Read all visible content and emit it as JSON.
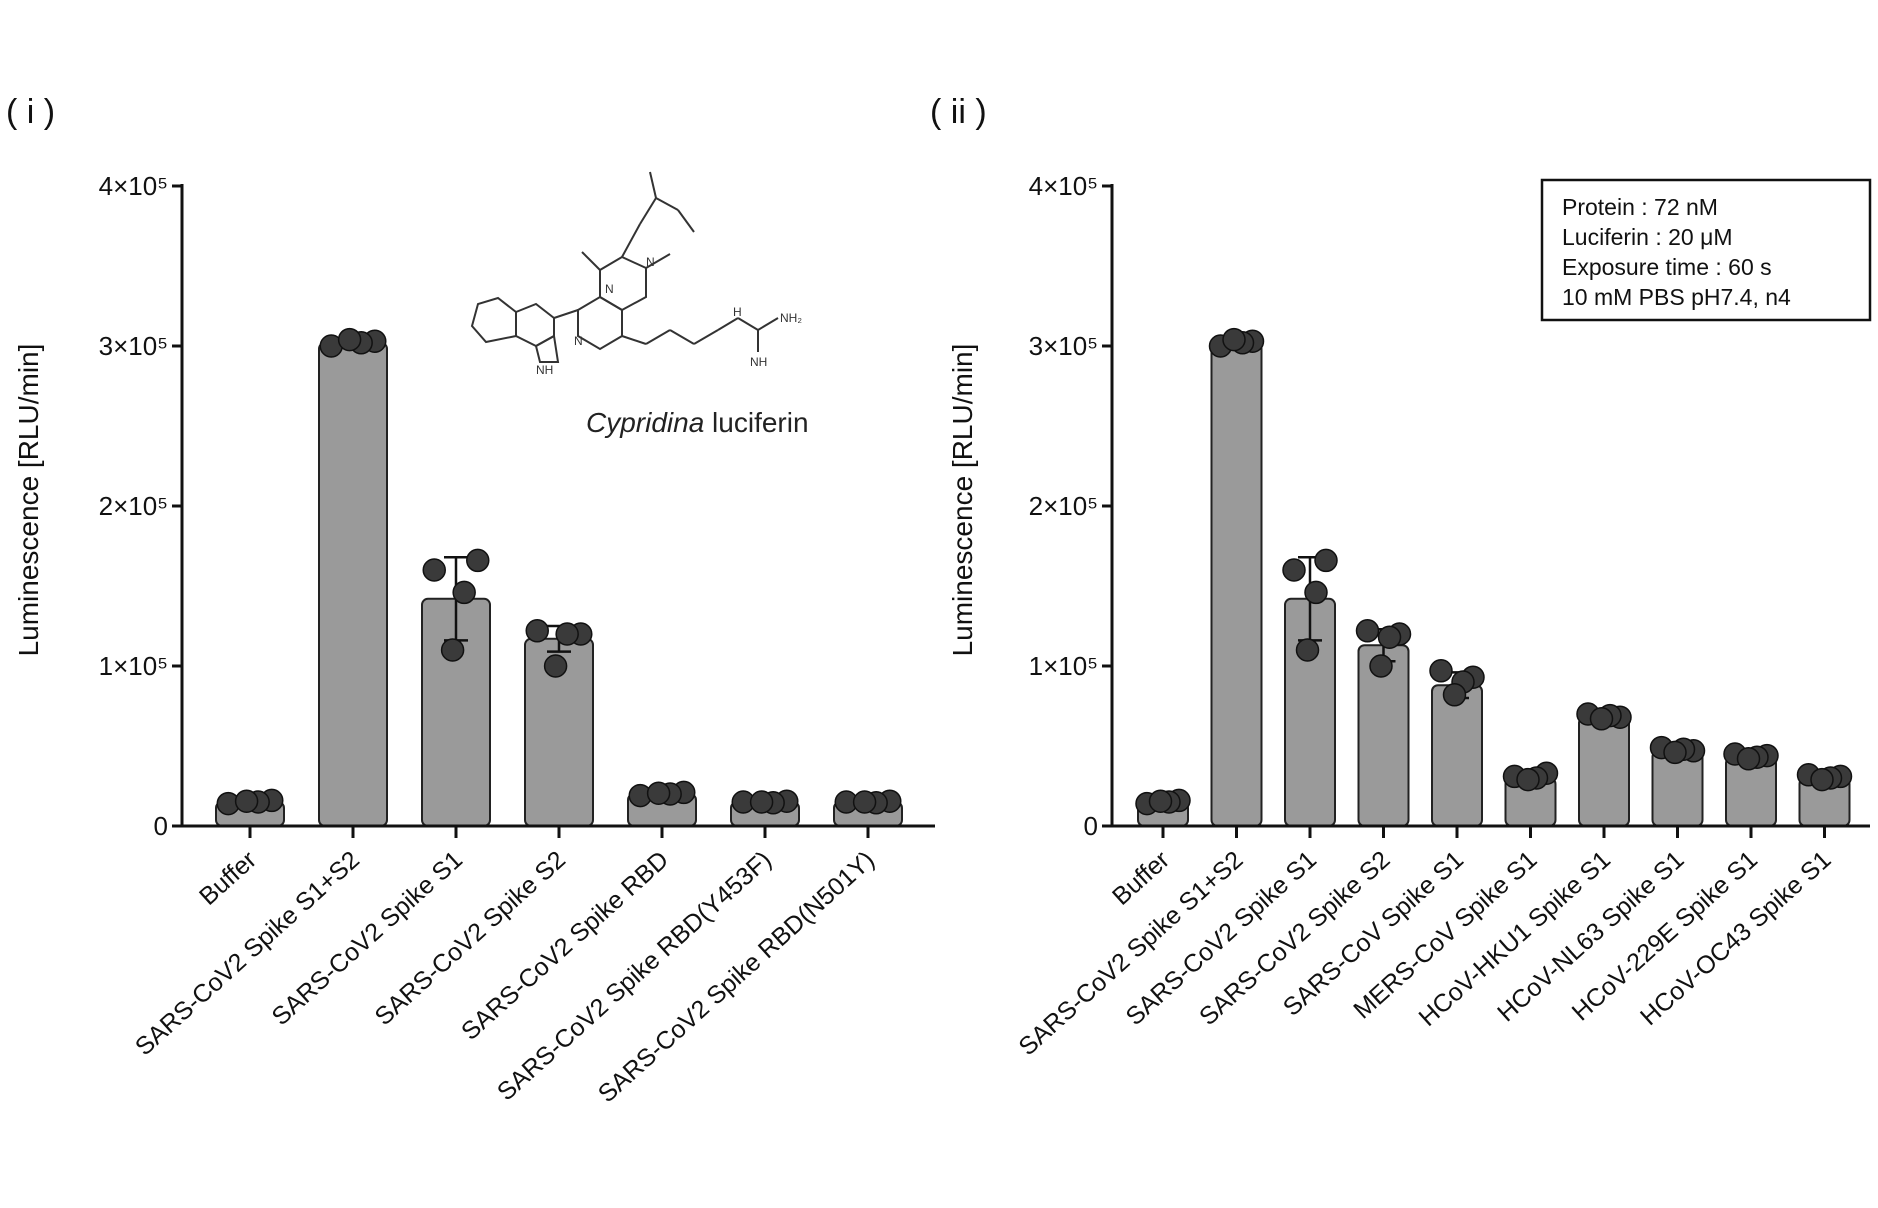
{
  "chart_data": [
    {
      "type": "bar",
      "panel_label": "( i )",
      "ylabel": "Luminescence [RLU/min]",
      "ylim": [
        0,
        400000
      ],
      "yticks": [
        {
          "value": 0,
          "label": "0"
        },
        {
          "value": 100000,
          "label": "1×10⁵"
        },
        {
          "value": 200000,
          "label": "2×10⁵"
        },
        {
          "value": 300000,
          "label": "3×10⁵"
        },
        {
          "value": 400000,
          "label": "4×10⁵"
        }
      ],
      "categories": [
        "Buffer",
        "SARS-CoV2 Spike S1+S2",
        "SARS-CoV2 Spike S1",
        "SARS-CoV2 Spike S2",
        "SARS-CoV2 Spike RBD",
        "SARS-CoV2 Spike RBD(Y453F)",
        "SARS-CoV2 Spike RBD(N501Y)"
      ],
      "values": [
        15000,
        302000,
        142000,
        117000,
        20000,
        15000,
        15000
      ],
      "errors": [
        2000,
        3000,
        26000,
        8000,
        2000,
        1500,
        1500
      ],
      "points": [
        [
          14000,
          16000,
          15000,
          15500
        ],
        [
          300000,
          303000,
          302000,
          304000
        ],
        [
          160000,
          166000,
          146000,
          110000
        ],
        [
          122000,
          120000,
          120000,
          100000
        ],
        [
          19000,
          21000,
          20000,
          20500
        ],
        [
          15000,
          15500,
          14500,
          15000
        ],
        [
          15000,
          15500,
          14500,
          15000
        ]
      ],
      "inset": {
        "caption_italic": "Cypridina",
        "caption_rest": " luciferin"
      }
    },
    {
      "type": "bar",
      "panel_label": "( ii )",
      "ylabel": "Luminescence [RLU/min]",
      "ylim": [
        0,
        400000
      ],
      "yticks": [
        {
          "value": 0,
          "label": "0"
        },
        {
          "value": 100000,
          "label": "1×10⁵"
        },
        {
          "value": 200000,
          "label": "2×10⁵"
        },
        {
          "value": 300000,
          "label": "3×10⁵"
        },
        {
          "value": 400000,
          "label": "4×10⁵"
        }
      ],
      "categories": [
        "Buffer",
        "SARS-CoV2 Spike S1+S2",
        "SARS-CoV2 Spike S1",
        "SARS-CoV2 Spike S2",
        "SARS-CoV Spike S1",
        "MERS-CoV Spike S1",
        "HCoV-HKU1 Spike S1",
        "HCoV-NL63 Spike S1",
        "HCoV-229E Spike S1",
        "HCoV-OC43 Spike S1"
      ],
      "values": [
        15000,
        302000,
        142000,
        113000,
        88000,
        30000,
        68000,
        47000,
        43000,
        30000
      ],
      "errors": [
        2000,
        3000,
        26000,
        10000,
        8000,
        3000,
        3000,
        3000,
        3000,
        3000
      ],
      "points": [
        [
          14000,
          16000,
          15000,
          15500
        ],
        [
          300000,
          303000,
          302000,
          304000
        ],
        [
          160000,
          166000,
          146000,
          110000
        ],
        [
          122000,
          120000,
          118000,
          100000
        ],
        [
          97000,
          93000,
          90000,
          82000
        ],
        [
          31000,
          33000,
          30000,
          29000
        ],
        [
          70000,
          68000,
          69000,
          67000
        ],
        [
          49000,
          47000,
          48000,
          46000
        ],
        [
          45000,
          44000,
          43000,
          42000
        ],
        [
          32000,
          31000,
          30000,
          29000
        ]
      ],
      "legend": [
        "Protein : 72 nM",
        "Luciferin : 20 μM",
        "Exposure time : 60 s",
        "10 mM PBS pH7.4, n4"
      ]
    }
  ]
}
